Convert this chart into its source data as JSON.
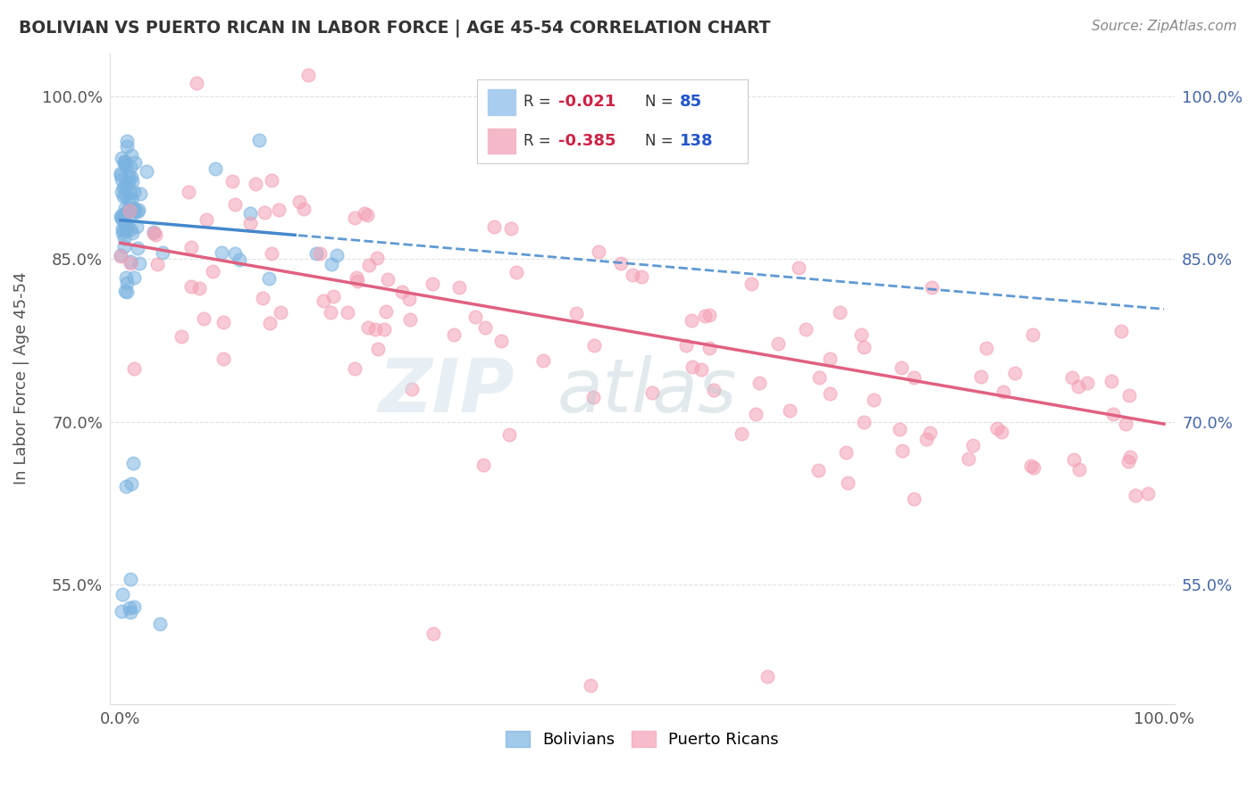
{
  "title": "BOLIVIAN VS PUERTO RICAN IN LABOR FORCE | AGE 45-54 CORRELATION CHART",
  "source": "Source: ZipAtlas.com",
  "ylabel": "In Labor Force | Age 45-54",
  "xlim": [
    -0.01,
    1.01
  ],
  "ylim": [
    0.44,
    1.04
  ],
  "yticks": [
    0.55,
    0.7,
    0.85,
    1.0
  ],
  "ytick_labels": [
    "55.0%",
    "70.0%",
    "85.0%",
    "100.0%"
  ],
  "xtick_labels": [
    "0.0%",
    "100.0%"
  ],
  "bolivian_color": "#7ab3e0",
  "puerto_rican_color": "#f4a0b5",
  "trend1_color": "#4488cc",
  "trend2_color": "#e06080",
  "background_color": "#ffffff",
  "watermark_zip": "ZIP",
  "watermark_atlas": "atlas",
  "r1": -0.021,
  "n1": 85,
  "r2": -0.385,
  "n2": 138
}
